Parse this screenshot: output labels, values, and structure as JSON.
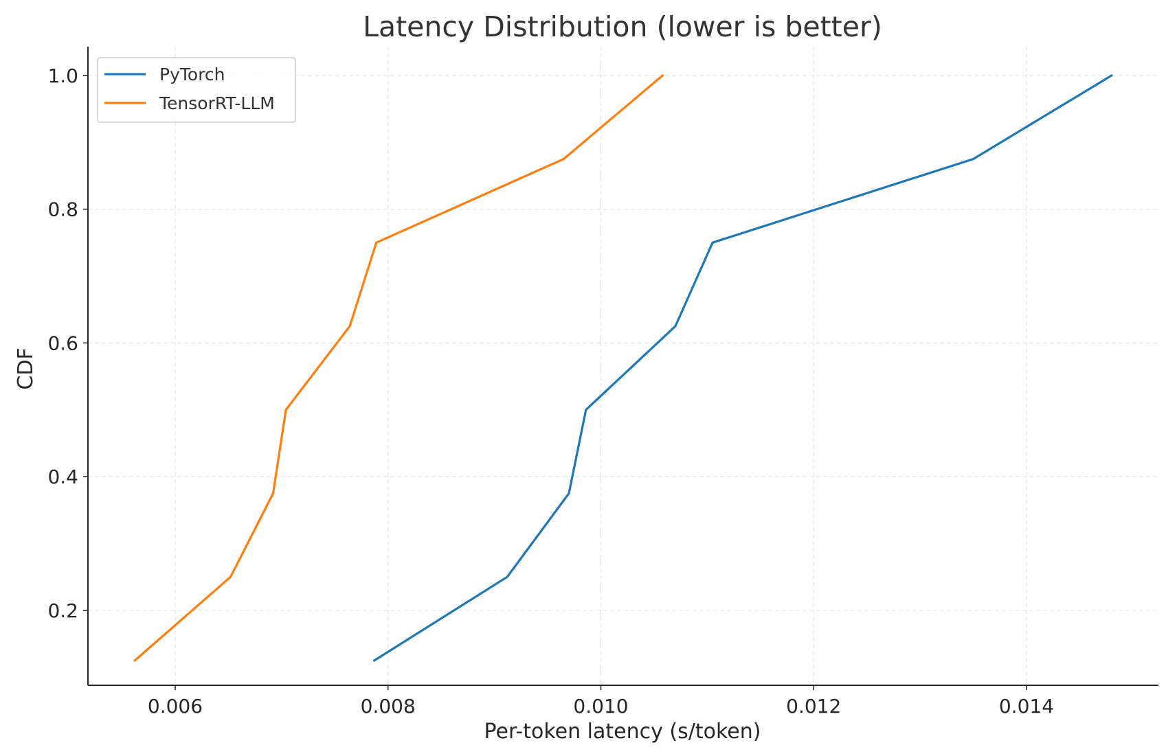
{
  "chart_data": {
    "type": "line",
    "title": "Latency Distribution (lower is better)",
    "xlabel": "Per-token latency (s/token)",
    "ylabel": "CDF",
    "xlim": [
      0.00518,
      0.01524
    ],
    "ylim": [
      0.088,
      1.043
    ],
    "xticks": [
      0.006,
      0.008,
      0.01,
      0.012,
      0.014
    ],
    "xtick_labels": [
      "0.006",
      "0.008",
      "0.010",
      "0.012",
      "0.014"
    ],
    "yticks": [
      0.2,
      0.4,
      0.6,
      0.8,
      1.0
    ],
    "ytick_labels": [
      "0.2",
      "0.4",
      "0.6",
      "0.8",
      "1.0"
    ],
    "grid": true,
    "legend_position": "top-left",
    "series": [
      {
        "name": "PyTorch",
        "color": "#1f77b4",
        "x": [
          0.00787,
          0.00912,
          0.0097,
          0.00986,
          0.0107,
          0.01105,
          0.0135,
          0.0148
        ],
        "y": [
          0.125,
          0.25,
          0.375,
          0.5,
          0.625,
          0.75,
          0.875,
          1.0
        ]
      },
      {
        "name": "TensorRT-LLM",
        "color": "#ff7f0e",
        "x": [
          0.00562,
          0.00652,
          0.00692,
          0.00704,
          0.00764,
          0.00789,
          0.00965,
          0.01058
        ],
        "y": [
          0.125,
          0.25,
          0.375,
          0.5,
          0.625,
          0.75,
          0.875,
          1.0
        ]
      }
    ]
  }
}
